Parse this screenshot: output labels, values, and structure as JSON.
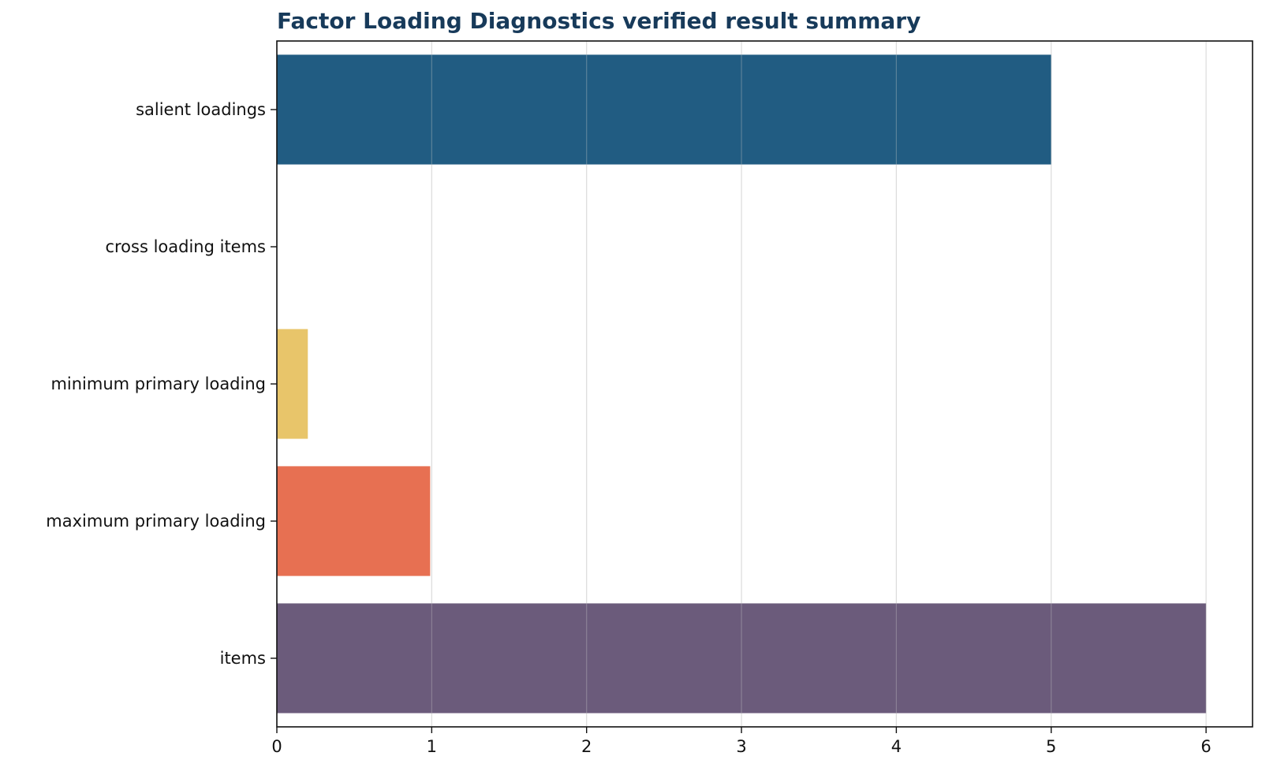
{
  "chart_data": {
    "type": "bar",
    "orientation": "horizontal",
    "title": "Factor Loading Diagnostics verified result summary",
    "xlabel": "",
    "ylabel": "",
    "categories": [
      "salient loadings",
      "cross loading items",
      "minimum primary loading",
      "maximum primary loading",
      "items"
    ],
    "values": [
      5,
      0,
      0.2,
      0.99,
      6
    ],
    "colors": [
      "#215c82",
      "#4aa3a2",
      "#e8c56a",
      "#e77052",
      "#6b5b7b"
    ],
    "xlim": [
      0,
      6.3
    ],
    "xticks": [
      0,
      1,
      2,
      3,
      4,
      5,
      6
    ],
    "grid": "x"
  }
}
